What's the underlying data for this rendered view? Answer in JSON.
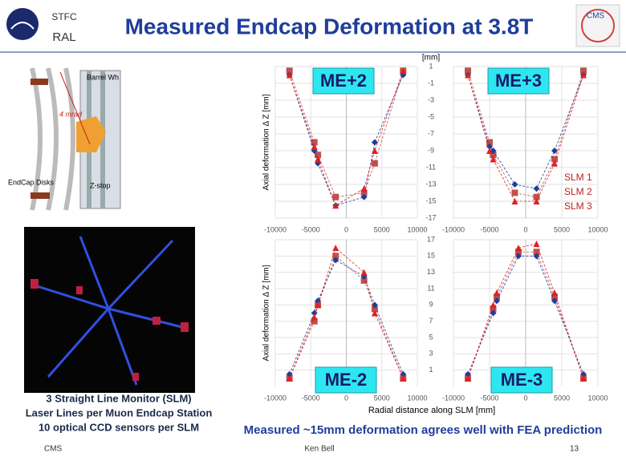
{
  "header": {
    "logo_top": "STFC",
    "logo_bottom": "RAL",
    "title": "Measured Endcap Deformation at 3.8T",
    "corner_logo": "CMS"
  },
  "diagram": {
    "labels": [
      "Barrel Wh",
      "4 mrad",
      "EndCap Disks",
      "Z-stop"
    ]
  },
  "caption": [
    "3 Straight Line Monitor (SLM)",
    "Laser Lines per Muon Endcap Station",
    "10 optical CCD sensors per SLM"
  ],
  "unit_label": "[mm]",
  "x_axis_label": "Radial distance along SLM [mm]",
  "legend": [
    {
      "name": "SLM 1",
      "color": "#c0504d",
      "marker": "square"
    },
    {
      "name": "SLM 2",
      "color": "#1f3e9b",
      "marker": "diamond"
    },
    {
      "name": "SLM 3",
      "color": "#e02020",
      "marker": "triangle"
    }
  ],
  "chart_data": [
    {
      "type": "scatter",
      "title": "ME+2",
      "ylabel": "Axial  deformation  Δ Z [mm]",
      "xlim": [
        -10000,
        10000
      ],
      "xticks": [
        -10000,
        -5000,
        0,
        5000,
        10000
      ],
      "ylim": [
        -17,
        1
      ],
      "yticks": [
        1,
        -1,
        -3,
        -5,
        -7,
        -9,
        -11,
        -13,
        -15,
        -17
      ],
      "grid": true,
      "x": [
        -8000,
        -4500,
        -4000,
        -1500,
        2500,
        4000,
        8000
      ],
      "series": [
        {
          "values": [
            0.5,
            -8,
            -9.5,
            -14.5,
            -14,
            -10.5,
            0.5
          ]
        },
        {
          "values": [
            0,
            -9,
            -10.5,
            -15.5,
            -14.5,
            -8,
            0
          ]
        },
        {
          "values": [
            0,
            -8.5,
            -10,
            -15.5,
            -13.5,
            -9,
            0.5
          ]
        }
      ]
    },
    {
      "type": "scatter",
      "title": "ME+3",
      "xlim": [
        -10000,
        10000
      ],
      "xticks": [
        -10000,
        -5000,
        0,
        5000,
        10000
      ],
      "ylim": [
        -17,
        1
      ],
      "yticks": [
        1,
        -1,
        -3,
        -5,
        -7,
        -9,
        -11,
        -13,
        -15,
        -17
      ],
      "grid": true,
      "x": [
        -8000,
        -5000,
        -4500,
        -1500,
        1500,
        4000,
        8000
      ],
      "series": [
        {
          "values": [
            0.5,
            -8,
            -9.5,
            -14,
            -14.5,
            -10,
            0.5
          ]
        },
        {
          "values": [
            0,
            -8.5,
            -9,
            -13,
            -13.5,
            -9,
            0
          ]
        },
        {
          "values": [
            0,
            -9,
            -10,
            -15,
            -15,
            -10.5,
            0
          ]
        }
      ]
    },
    {
      "type": "scatter",
      "title": "ME-2",
      "ylabel": "Axial deformation  Δ Z [mm]",
      "xlim": [
        -10000,
        10000
      ],
      "xticks": [
        -10000,
        -5000,
        0,
        5000,
        10000
      ],
      "ylim": [
        -1,
        17
      ],
      "yticks": [
        17,
        15,
        13,
        11,
        9,
        7,
        5,
        3,
        1
      ],
      "grid": true,
      "x": [
        -8000,
        -4500,
        -4000,
        -1500,
        2500,
        4000,
        8000
      ],
      "series": [
        {
          "values": [
            0,
            7,
            9,
            15,
            12,
            8.5,
            0
          ]
        },
        {
          "values": [
            0.5,
            8,
            9.5,
            14.5,
            12.5,
            9,
            0.5
          ]
        },
        {
          "values": [
            0,
            7.5,
            9,
            16,
            13,
            8,
            0
          ]
        }
      ]
    },
    {
      "type": "scatter",
      "title": "ME-3",
      "xlim": [
        -10000,
        10000
      ],
      "xticks": [
        -10000,
        -5000,
        0,
        5000,
        10000
      ],
      "ylim": [
        -1,
        17
      ],
      "yticks": [
        17,
        15,
        13,
        11,
        9,
        7,
        5,
        3,
        1
      ],
      "grid": true,
      "x": [
        -8000,
        -4500,
        -4000,
        -1000,
        1500,
        4000,
        8000
      ],
      "series": [
        {
          "values": [
            0,
            8.5,
            10,
            15.5,
            15.5,
            10,
            0
          ]
        },
        {
          "values": [
            0.5,
            8,
            9.5,
            15,
            15,
            9.5,
            0.5
          ]
        },
        {
          "values": [
            0,
            9,
            10.5,
            16,
            16.5,
            10.5,
            0
          ]
        }
      ]
    }
  ],
  "conclusion": "Measured ~15mm deformation agrees well with FEA prediction",
  "footer": {
    "left": "CMS",
    "center": "Ken Bell",
    "right": "13"
  }
}
